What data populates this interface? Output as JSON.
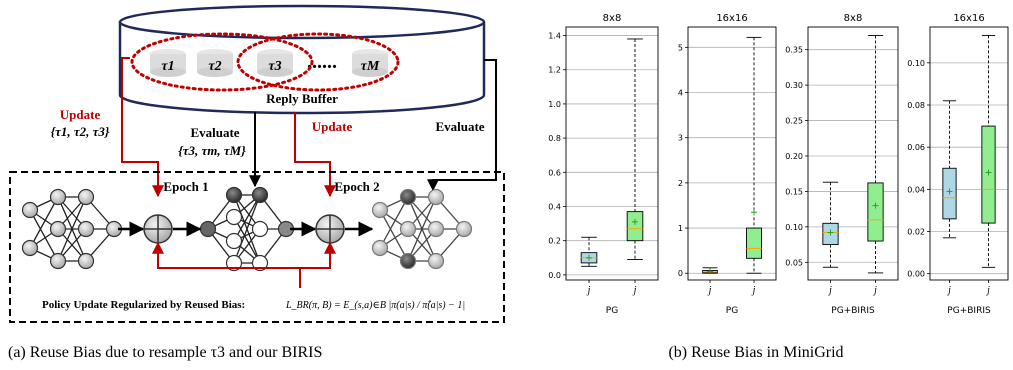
{
  "diagram": {
    "buffer_label": "Reply Buffer",
    "tau_labels": [
      "τ1",
      "τ2",
      "τ3",
      "τM"
    ],
    "dots": "......",
    "update_left": "Update",
    "update_left_set": "{τ1, τ2, τ3}",
    "evaluate_mid": "Evaluate",
    "evaluate_mid_set": "{τ3, τm, τM}",
    "update_right": "Update",
    "evaluate_right": "Evaluate",
    "epoch1": "Epoch 1",
    "epoch2": "Epoch 2",
    "policy_text": "Policy Update Regularized by Reused Bias:",
    "policy_formula": "L_BR(π, B) = E_(s,a)∈B |π(a|s) / π̂(a|s) − 1|",
    "caption_a": "(a) Reuse Bias due to resample τ3 and our BIRIS",
    "colors": {
      "red": "#c00000",
      "black": "#000000"
    }
  },
  "caption_b": "(b) Reuse Bias in MiniGrid",
  "chart_data": [
    {
      "type": "box",
      "title": "8x8",
      "xlabel": "PG",
      "yticks": [
        0.0,
        0.2,
        0.4,
        0.6,
        0.8,
        1.0,
        1.2,
        1.4
      ],
      "ylim": [
        -0.03,
        1.45
      ],
      "boxes": [
        {
          "x": "j",
          "color": "#add8e6",
          "whislo": 0.05,
          "q1": 0.07,
          "med": 0.1,
          "mean": 0.1,
          "q3": 0.13,
          "whishi": 0.22
        },
        {
          "x": "j",
          "color": "#90ee90",
          "whislo": 0.09,
          "q1": 0.2,
          "med": 0.27,
          "mean": 0.31,
          "q3": 0.37,
          "whishi": 1.38
        }
      ]
    },
    {
      "type": "box",
      "title": "16x16",
      "xlabel": "PG",
      "yticks": [
        0,
        1,
        2,
        3,
        4,
        5
      ],
      "ylim": [
        -0.15,
        5.45
      ],
      "boxes": [
        {
          "x": "j",
          "color": "#add8e6",
          "whislo": 0.0,
          "q1": 0.01,
          "med": 0.03,
          "mean": 0.04,
          "q3": 0.06,
          "whishi": 0.12
        },
        {
          "x": "j",
          "color": "#90ee90",
          "whislo": 0.0,
          "q1": 0.33,
          "med": 0.55,
          "mean": 1.35,
          "q3": 1.0,
          "whishi": 5.22
        }
      ]
    },
    {
      "type": "box",
      "title": "8x8",
      "xlabel": "PG+BIRIS",
      "yticks": [
        0.05,
        0.1,
        0.15,
        0.2,
        0.25,
        0.3,
        0.35
      ],
      "ylim": [
        0.025,
        0.382
      ],
      "boxes": [
        {
          "x": "j",
          "color": "#add8e6",
          "whislo": 0.043,
          "q1": 0.075,
          "med": 0.092,
          "mean": 0.092,
          "q3": 0.105,
          "whishi": 0.163
        },
        {
          "x": "j",
          "color": "#90ee90",
          "whislo": 0.035,
          "q1": 0.08,
          "med": 0.11,
          "mean": 0.13,
          "q3": 0.162,
          "whishi": 0.37
        }
      ]
    },
    {
      "type": "box",
      "title": "16x16",
      "xlabel": "PG+BIRIS",
      "yticks": [
        0.0,
        0.02,
        0.04,
        0.06,
        0.08,
        0.1
      ],
      "ylim": [
        -0.003,
        0.117
      ],
      "boxes": [
        {
          "x": "j",
          "color": "#add8e6",
          "whislo": 0.017,
          "q1": 0.026,
          "med": 0.036,
          "mean": 0.039,
          "q3": 0.05,
          "whishi": 0.082
        },
        {
          "x": "j",
          "color": "#90ee90",
          "whislo": 0.003,
          "q1": 0.024,
          "med": 0.04,
          "mean": 0.048,
          "q3": 0.07,
          "whishi": 0.113
        }
      ]
    }
  ]
}
